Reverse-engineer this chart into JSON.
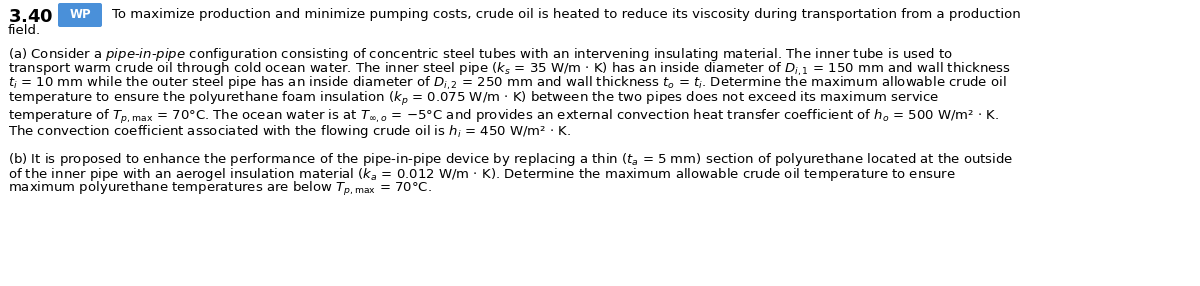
{
  "figsize": [
    12.0,
    2.86
  ],
  "dpi": 100,
  "bg_color": "#ffffff",
  "problem_number": "3.40",
  "wp_label": "WP",
  "wp_bg": "#4a90d9",
  "wp_text_color": "#ffffff",
  "fs": 9.5,
  "lines": {
    "row0a": "3.40",
    "row0b": "WP",
    "row0c": "To maximize production and minimize pumping costs, crude oil is heated to reduce its viscosity during transportation from a production",
    "row1": "field.",
    "row2": "(a) Consider a \\textit{pipe-in-pipe} configuration consisting of concentric steel tubes with an intervening insulating material. The inner tube is used to",
    "row3": "transport warm crude oil through cold ocean water. The inner steel pipe ($k_s$ = 35 W/m $\\cdot$ K) has an inside diameter of $D_{i,1}$ = 150 mm and wall thickness",
    "row4": "$t_i$ = 10 mm while the outer steel pipe has an inside diameter of $D_{i,2}$ = 250 mm and wall thickness $t_o$ = $t_i$. Determine the maximum allowable crude oil",
    "row5": "temperature to ensure the polyurethane foam insulation ($k_p$ = 0.075 W/m $\\cdot$ K) between the two pipes does not exceed its maximum service",
    "row6": "temperature of $T_{p,\\mathrm{max}}$ = 70°C. The ocean water is at $T_{\\infty,o}$ = −5°C and provides an external convection heat transfer coefficient of $h_o$ = 500 W/m² $\\cdot$ K.",
    "row7": "The convection coefficient associated with the flowing crude oil is $h_i$ = 450 W/m² $\\cdot$ K.",
    "row8": "(b) It is proposed to enhance the performance of the pipe-in-pipe device by replacing a thin ($t_a$ = 5 mm) section of polyurethane located at the outside",
    "row9": "of the inner pipe with an aerogel insulation material ($k_a$ = 0.012 W/m $\\cdot$ K). Determine the maximum allowable crude oil temperature to ensure",
    "row10": "maximum polyurethane temperatures are below $T_{p,\\mathrm{max}}$ = 70°C."
  }
}
